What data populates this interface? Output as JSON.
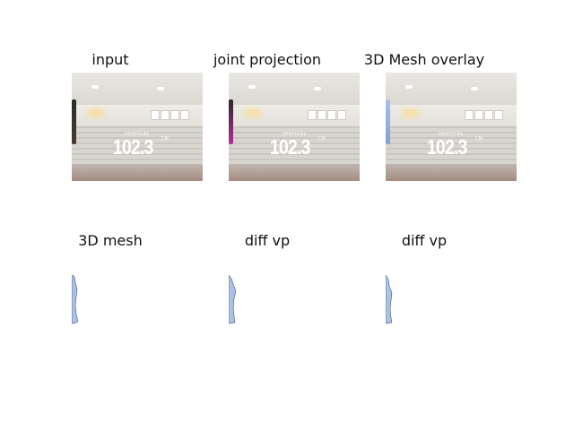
{
  "panels": {
    "input": {
      "title": "input"
    },
    "joint_projection": {
      "title": "joint projection"
    },
    "mesh_overlay": {
      "title": "3D Mesh overlay"
    },
    "mesh": {
      "title": "3D mesh"
    },
    "diff_vp_1": {
      "title": "diff vp"
    },
    "diff_vp_2": {
      "title": "diff vp"
    }
  },
  "scene": {
    "overlay_label": "VERTICAL",
    "overlay_value": "102.3",
    "overlay_unit": "CM"
  },
  "colors": {
    "mesh": "#a9c2e6",
    "joint_projection": "#b52b9a"
  }
}
